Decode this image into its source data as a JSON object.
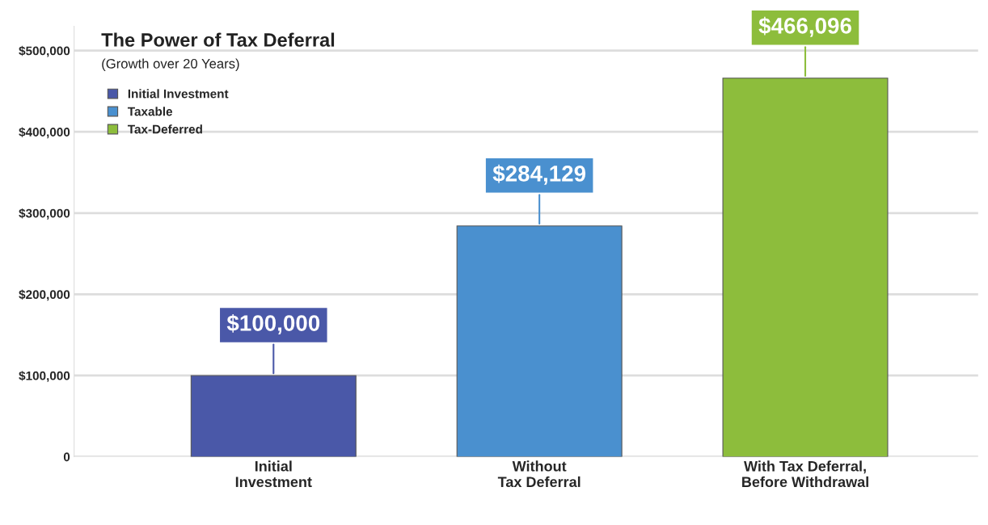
{
  "chart_data": {
    "type": "bar",
    "title": "The Power of Tax Deferral",
    "subtitle": "(Growth over 20 Years)",
    "categories": [
      "Initial\nInvestment",
      "Without\nTax Deferral",
      "With Tax Deferral,\nBefore Withdrawal"
    ],
    "series": [
      {
        "name": "Initial Investment",
        "color": "#4a58a8",
        "values": [
          100000,
          null,
          null
        ],
        "value_labels": [
          "$100,000",
          null,
          null
        ]
      },
      {
        "name": "Taxable",
        "color": "#4a90cf",
        "values": [
          null,
          284129,
          null
        ],
        "value_labels": [
          null,
          "$284,129",
          null
        ]
      },
      {
        "name": "Tax-Deferred",
        "color": "#8dbd3c",
        "values": [
          null,
          null,
          466096
        ],
        "value_labels": [
          null,
          null,
          "$466,096"
        ]
      }
    ],
    "ylim": [
      0,
      530000
    ],
    "yticks": [
      {
        "value": 0,
        "label": "0"
      },
      {
        "value": 100000,
        "label": "$100,000"
      },
      {
        "value": 200000,
        "label": "$200,000"
      },
      {
        "value": 300000,
        "label": "$300,000"
      },
      {
        "value": 400000,
        "label": "$400,000"
      },
      {
        "value": 500000,
        "label": "$500,000"
      }
    ],
    "grid": "y",
    "legend": "top left"
  }
}
